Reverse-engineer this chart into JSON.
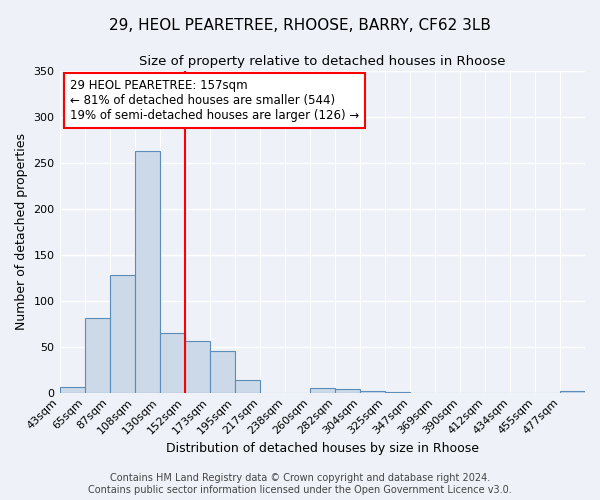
{
  "title_line1": "29, HEOL PEARETREE, RHOOSE, BARRY, CF62 3LB",
  "title_line2": "Size of property relative to detached houses in Rhoose",
  "xlabel": "Distribution of detached houses by size in Rhoose",
  "ylabel": "Number of detached properties",
  "bin_labels": [
    "43sqm",
    "65sqm",
    "87sqm",
    "108sqm",
    "130sqm",
    "152sqm",
    "173sqm",
    "195sqm",
    "217sqm",
    "238sqm",
    "260sqm",
    "282sqm",
    "304sqm",
    "325sqm",
    "347sqm",
    "369sqm",
    "390sqm",
    "412sqm",
    "434sqm",
    "455sqm",
    "477sqm"
  ],
  "bar_heights": [
    6,
    81,
    128,
    263,
    65,
    56,
    45,
    14,
    0,
    0,
    5,
    4,
    2,
    1,
    0,
    0,
    0,
    0,
    0,
    0,
    2
  ],
  "bar_color": "#ccd9e8",
  "bar_edge_color": "#5b8db8",
  "vline_x_index": 5,
  "vline_color": "red",
  "annotation_line1": "29 HEOL PEARETREE: 157sqm",
  "annotation_line2": "← 81% of detached houses are smaller (544)",
  "annotation_line3": "19% of semi-detached houses are larger (126) →",
  "annotation_box_color": "white",
  "annotation_box_edge_color": "red",
  "ylim": [
    0,
    350
  ],
  "yticks": [
    0,
    50,
    100,
    150,
    200,
    250,
    300,
    350
  ],
  "footer_line1": "Contains HM Land Registry data © Crown copyright and database right 2024.",
  "footer_line2": "Contains public sector information licensed under the Open Government Licence v3.0.",
  "background_color": "#eef2f8",
  "grid_color": "white",
  "title1_fontsize": 11,
  "title2_fontsize": 9.5,
  "axis_label_fontsize": 9,
  "tick_fontsize": 8,
  "annot_fontsize": 8.5,
  "footer_fontsize": 7
}
